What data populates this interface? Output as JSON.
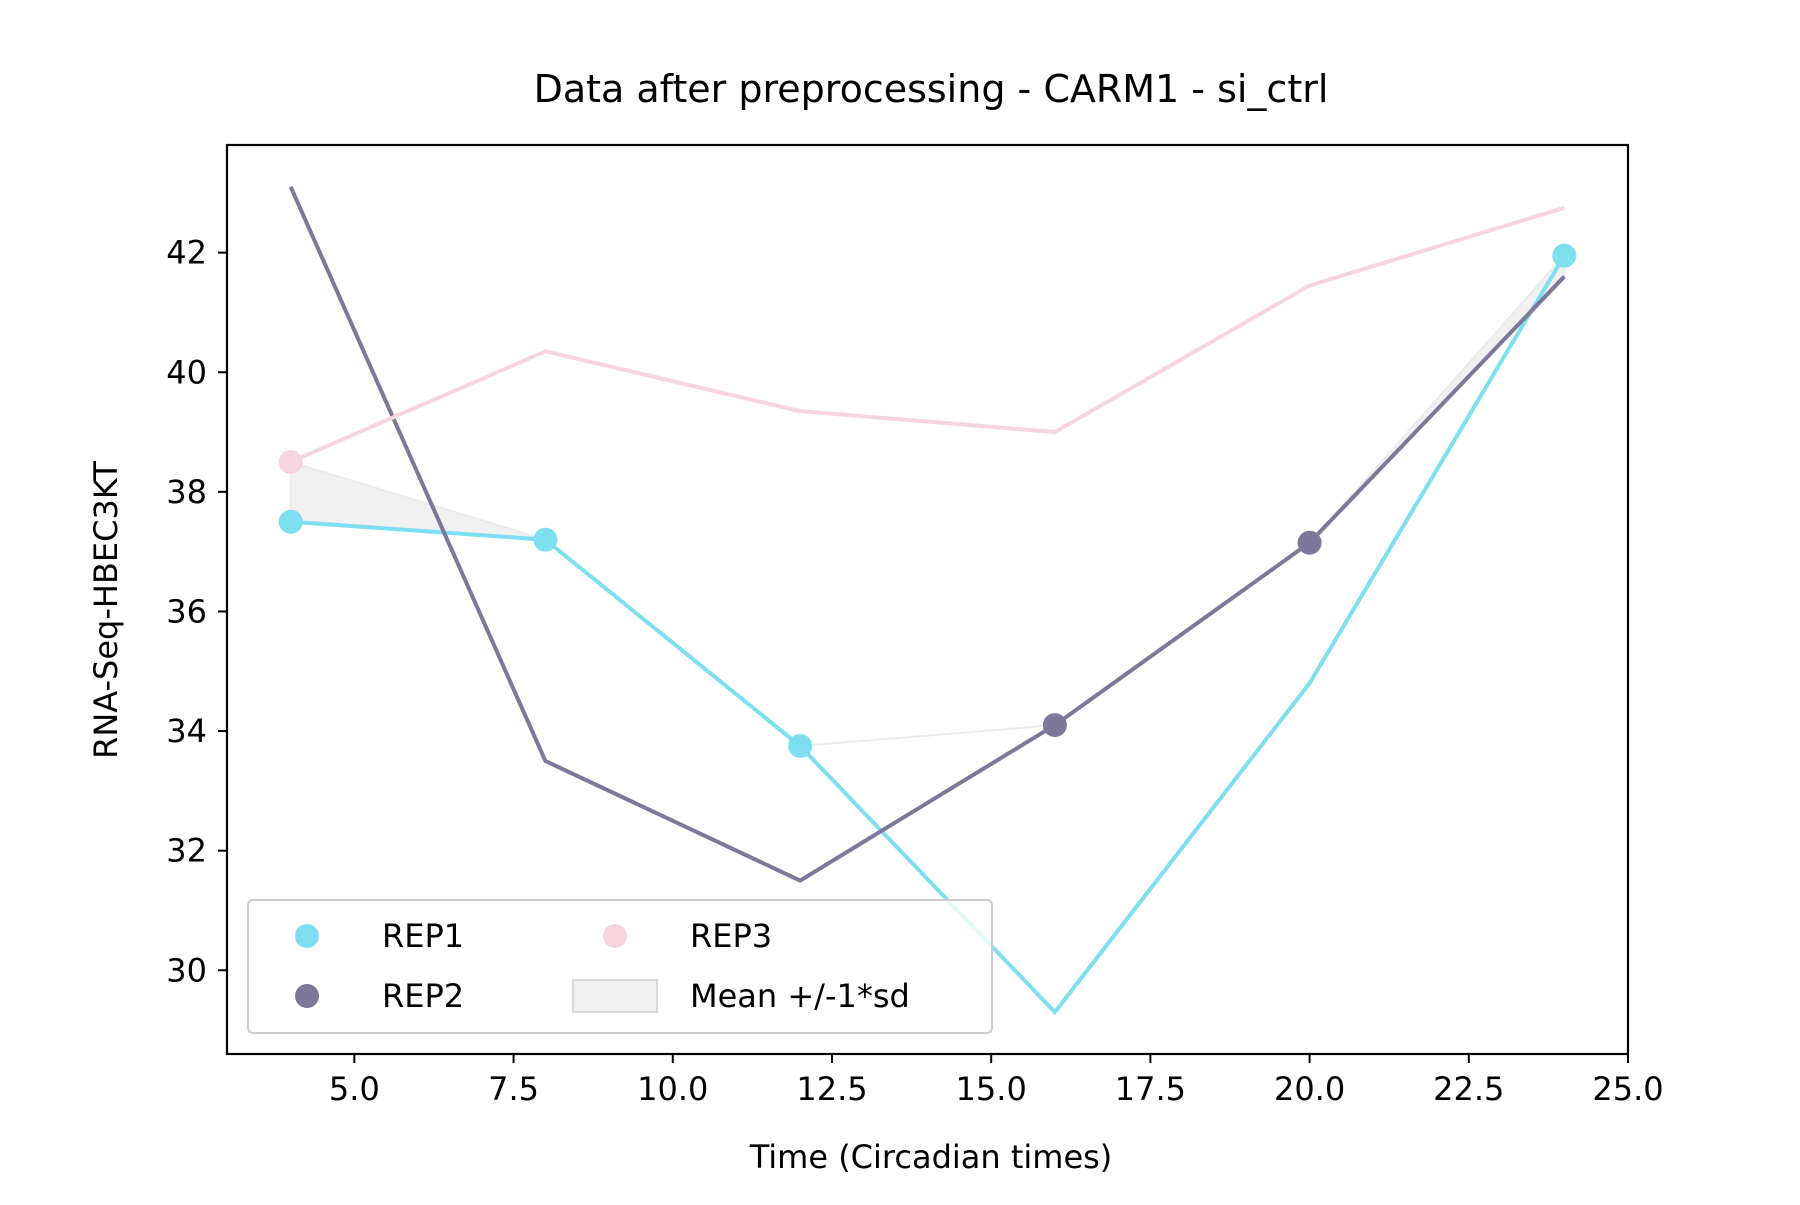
{
  "chart_data": {
    "type": "line",
    "title": "Data after preprocessing - CARM1 - si_ctrl",
    "xlabel": "Time (Circadian times)",
    "ylabel": "RNA-Seq-HBEC3KT",
    "xlim": [
      3.0,
      25.0
    ],
    "ylim": [
      28.6,
      43.8
    ],
    "xticks": [
      5.0,
      7.5,
      10.0,
      12.5,
      15.0,
      17.5,
      20.0,
      22.5,
      25.0
    ],
    "xtick_labels": [
      "5.0",
      "7.5",
      "10.0",
      "12.5",
      "15.0",
      "17.5",
      "20.0",
      "22.5",
      "25.0"
    ],
    "yticks": [
      30,
      32,
      34,
      36,
      38,
      40,
      42
    ],
    "ytick_labels": [
      "30",
      "32",
      "34",
      "36",
      "38",
      "40",
      "42"
    ],
    "grid": false,
    "legend_position": "lower-left",
    "x": [
      4,
      8,
      12,
      16,
      20,
      24
    ],
    "series": [
      {
        "name": "REP1",
        "color": "#7ddfef",
        "values": [
          37.5,
          37.2,
          33.75,
          29.3,
          34.8,
          41.95
        ]
      },
      {
        "name": "REP2",
        "color": "#7b7899",
        "values": [
          43.1,
          33.5,
          31.5,
          34.1,
          37.15,
          41.6
        ]
      },
      {
        "name": "REP3",
        "color": "#f6d5df",
        "values": [
          38.5,
          40.35,
          39.35,
          39.0,
          41.45,
          42.75
        ]
      }
    ],
    "markers": [
      {
        "series": "REP3",
        "x": 4,
        "y": 38.5
      },
      {
        "series": "REP1",
        "x": 4,
        "y": 37.5
      },
      {
        "series": "REP1",
        "x": 8,
        "y": 37.2
      },
      {
        "series": "REP1",
        "x": 12,
        "y": 33.75
      },
      {
        "series": "REP2",
        "x": 16,
        "y": 34.1
      },
      {
        "series": "REP2",
        "x": 20,
        "y": 37.15
      },
      {
        "series": "REP1",
        "x": 24,
        "y": 41.95
      }
    ],
    "band": {
      "name": "Mean +/-1*sd",
      "color": "#ebebeb",
      "x": [
        4,
        8,
        12,
        16,
        20,
        24
      ],
      "lower": [
        37.5,
        37.2,
        33.75,
        34.1,
        37.15,
        41.6
      ],
      "upper": [
        38.5,
        37.2,
        33.75,
        34.1,
        37.15,
        41.95
      ]
    },
    "legend": [
      {
        "label": "REP1",
        "kind": "marker",
        "color": "#7ddfef"
      },
      {
        "label": "REP2",
        "kind": "marker",
        "color": "#7b7899"
      },
      {
        "label": "REP3",
        "kind": "marker",
        "color": "#f6d5df"
      },
      {
        "label": "Mean +/-1*sd",
        "kind": "band",
        "color": "#ebebeb"
      }
    ]
  }
}
